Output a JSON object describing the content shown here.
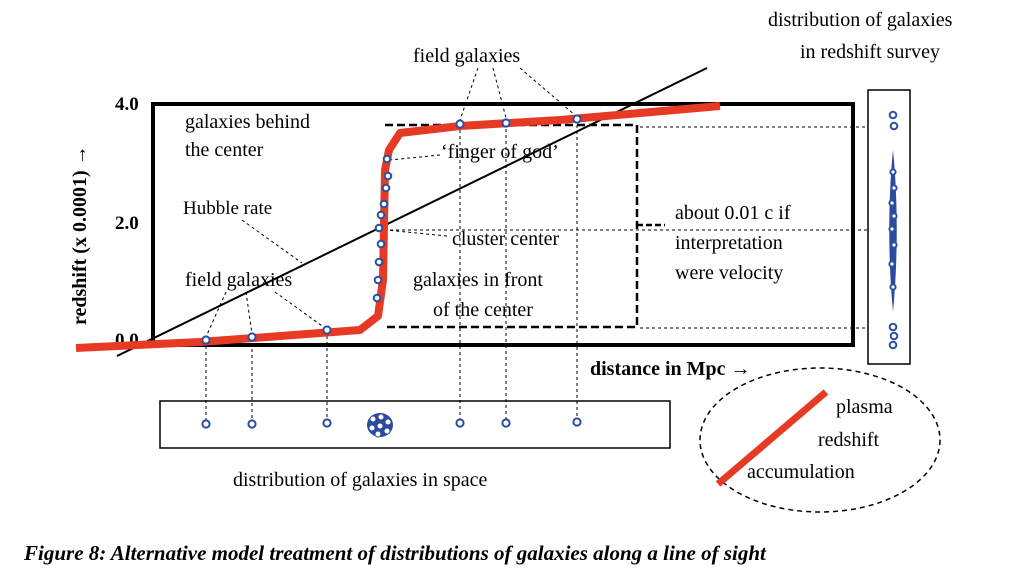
{
  "labels": {
    "field_galaxies_top": "field galaxies",
    "field_galaxies_left": "field galaxies",
    "survey_title_line1": "distribution of galaxies",
    "survey_title_line2": "in redshift survey",
    "behind_line1": "galaxies behind",
    "behind_line2": "the center",
    "finger": "‘finger of god’",
    "hubble": "Hubble rate",
    "cluster_center": "cluster center",
    "front_line1": "galaxies in front",
    "front_line2": "of the center",
    "velocity_line1": "about 0.01 c if",
    "velocity_line2": "interpretation",
    "velocity_line3": "were velocity",
    "space_caption": "distribution of galaxies in space",
    "plasma_line1": "plasma",
    "plasma_line2": "redshift",
    "plasma_line3": "accumulation",
    "figure_caption": "Figure 8:  Alternative model treatment of distributions of galaxies along a line of sight"
  },
  "axes": {
    "y_label": "redshift (x 0.0001) →",
    "x_label": "distance in Mpc →",
    "y_ticks": [
      "4.0",
      "2.0",
      "0.0"
    ]
  },
  "colors": {
    "curve": "#e63a25",
    "dot_stroke": "#2a4fa2",
    "survey_fill": "#2e4a9e"
  }
}
